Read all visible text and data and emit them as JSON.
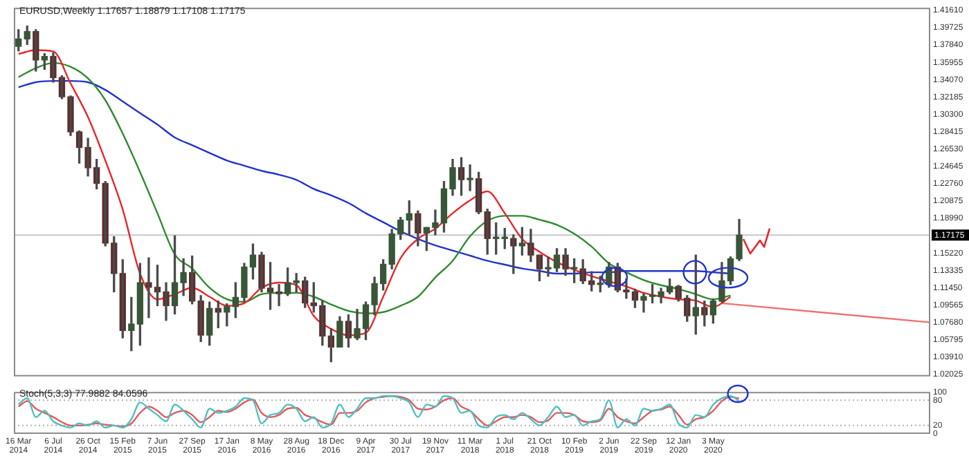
{
  "chart_data": [
    {
      "type": "candlestick",
      "title": "EURUSD,Weekly 1.17657 1.18879 1.17108 1.17175",
      "tick_labels": "y",
      "x": [
        "2014-03-16",
        "2014-04-13",
        "2014-05-11",
        "2014-06-08",
        "2014-07-06",
        "2014-08-03",
        "2014-08-31",
        "2014-09-28",
        "2014-10-26",
        "2014-11-23",
        "2014-12-21",
        "2015-01-18",
        "2015-02-15",
        "2015-03-15",
        "2015-04-12",
        "2015-05-10",
        "2015-06-07",
        "2015-07-05",
        "2015-08-02",
        "2015-08-30",
        "2015-09-27",
        "2015-10-25",
        "2015-11-22",
        "2015-12-20",
        "2016-01-17",
        "2016-02-14",
        "2016-03-13",
        "2016-04-10",
        "2016-05-08",
        "2016-06-05",
        "2016-07-03",
        "2016-07-31",
        "2016-08-28",
        "2016-09-25",
        "2016-10-23",
        "2016-11-20",
        "2016-12-18",
        "2017-01-15",
        "2017-02-12",
        "2017-03-12",
        "2017-04-09",
        "2017-05-07",
        "2017-06-04",
        "2017-07-02",
        "2017-07-30",
        "2017-08-27",
        "2017-09-24",
        "2017-10-22",
        "2017-11-19",
        "2017-12-17",
        "2018-01-14",
        "2018-02-11",
        "2018-03-11",
        "2018-04-08",
        "2018-05-06",
        "2018-06-03",
        "2018-07-01",
        "2018-07-29",
        "2018-08-26",
        "2018-09-23",
        "2018-10-21",
        "2018-11-18",
        "2018-12-16",
        "2019-01-13",
        "2019-02-10",
        "2019-03-10",
        "2019-04-07",
        "2019-05-05",
        "2019-06-02",
        "2019-06-30",
        "2019-07-28",
        "2019-08-25",
        "2019-09-22",
        "2019-10-20",
        "2019-11-17",
        "2019-12-15",
        "2020-01-12",
        "2020-02-09",
        "2020-03-08",
        "2020-04-05",
        "2020-05-03",
        "2020-05-31",
        "2020-06-28",
        "2020-07-26"
      ],
      "ohlc": [
        [
          1.377,
          1.395,
          1.372,
          1.385
        ],
        [
          1.385,
          1.399,
          1.379,
          1.393
        ],
        [
          1.393,
          1.395,
          1.35,
          1.362
        ],
        [
          1.362,
          1.369,
          1.352,
          1.366
        ],
        [
          1.366,
          1.37,
          1.338,
          1.343
        ],
        [
          1.343,
          1.345,
          1.32,
          1.322
        ],
        [
          1.322,
          1.323,
          1.28,
          1.284
        ],
        [
          1.284,
          1.285,
          1.25,
          1.267
        ],
        [
          1.267,
          1.277,
          1.236,
          1.245
        ],
        [
          1.245,
          1.254,
          1.222,
          1.228
        ],
        [
          1.228,
          1.23,
          1.16,
          1.163
        ],
        [
          1.163,
          1.17,
          1.11,
          1.13
        ],
        [
          1.13,
          1.145,
          1.06,
          1.068
        ],
        [
          1.068,
          1.104,
          1.046,
          1.075
        ],
        [
          1.075,
          1.141,
          1.052,
          1.12
        ],
        [
          1.12,
          1.147,
          1.082,
          1.115
        ],
        [
          1.115,
          1.139,
          1.095,
          1.11
        ],
        [
          1.11,
          1.12,
          1.079,
          1.095
        ],
        [
          1.095,
          1.171,
          1.086,
          1.12
        ],
        [
          1.12,
          1.146,
          1.106,
          1.131
        ],
        [
          1.131,
          1.149,
          1.097,
          1.1
        ],
        [
          1.1,
          1.106,
          1.056,
          1.063
        ],
        [
          1.063,
          1.099,
          1.052,
          1.092
        ],
        [
          1.092,
          1.1,
          1.071,
          1.088
        ],
        [
          1.088,
          1.097,
          1.073,
          1.094
        ],
        [
          1.094,
          1.12,
          1.082,
          1.104
        ],
        [
          1.104,
          1.141,
          1.1,
          1.137
        ],
        [
          1.137,
          1.162,
          1.124,
          1.15
        ],
        [
          1.15,
          1.153,
          1.11,
          1.114
        ],
        [
          1.114,
          1.142,
          1.091,
          1.11
        ],
        [
          1.11,
          1.118,
          1.095,
          1.108
        ],
        [
          1.108,
          1.136,
          1.106,
          1.12
        ],
        [
          1.12,
          1.13,
          1.11,
          1.122
        ],
        [
          1.122,
          1.126,
          1.093,
          1.098
        ],
        [
          1.098,
          1.12,
          1.088,
          1.095
        ],
        [
          1.095,
          1.1,
          1.052,
          1.062
        ],
        [
          1.062,
          1.07,
          1.034,
          1.05
        ],
        [
          1.05,
          1.083,
          1.05,
          1.078
        ],
        [
          1.078,
          1.085,
          1.05,
          1.06
        ],
        [
          1.06,
          1.091,
          1.058,
          1.07
        ],
        [
          1.07,
          1.099,
          1.058,
          1.096
        ],
        [
          1.096,
          1.126,
          1.085,
          1.119
        ],
        [
          1.119,
          1.145,
          1.112,
          1.14
        ],
        [
          1.14,
          1.178,
          1.135,
          1.173
        ],
        [
          1.173,
          1.191,
          1.167,
          1.188
        ],
        [
          1.188,
          1.209,
          1.172,
          1.195
        ],
        [
          1.195,
          1.198,
          1.16,
          1.174
        ],
        [
          1.174,
          1.18,
          1.155,
          1.18
        ],
        [
          1.18,
          1.199,
          1.172,
          1.185
        ],
        [
          1.185,
          1.23,
          1.175,
          1.222
        ],
        [
          1.222,
          1.254,
          1.215,
          1.245
        ],
        [
          1.245,
          1.256,
          1.215,
          1.232
        ],
        [
          1.232,
          1.248,
          1.22,
          1.233
        ],
        [
          1.233,
          1.24,
          1.195,
          1.197
        ],
        [
          1.197,
          1.2,
          1.151,
          1.168
        ],
        [
          1.168,
          1.185,
          1.151,
          1.168
        ],
        [
          1.168,
          1.179,
          1.157,
          1.168
        ],
        [
          1.168,
          1.172,
          1.13,
          1.16
        ],
        [
          1.16,
          1.18,
          1.15,
          1.163
        ],
        [
          1.163,
          1.178,
          1.143,
          1.15
        ],
        [
          1.15,
          1.15,
          1.122,
          1.135
        ],
        [
          1.135,
          1.148,
          1.127,
          1.136
        ],
        [
          1.136,
          1.157,
          1.132,
          1.15
        ],
        [
          1.15,
          1.157,
          1.128,
          1.135
        ],
        [
          1.135,
          1.146,
          1.12,
          1.135
        ],
        [
          1.135,
          1.145,
          1.119,
          1.122
        ],
        [
          1.122,
          1.132,
          1.111,
          1.118
        ],
        [
          1.118,
          1.127,
          1.11,
          1.118
        ],
        [
          1.118,
          1.142,
          1.115,
          1.137
        ],
        [
          1.137,
          1.141,
          1.11,
          1.112
        ],
        [
          1.112,
          1.124,
          1.103,
          1.11
        ],
        [
          1.11,
          1.113,
          1.093,
          1.101
        ],
        [
          1.101,
          1.108,
          1.088,
          1.105
        ],
        [
          1.105,
          1.118,
          1.098,
          1.105
        ],
        [
          1.105,
          1.114,
          1.098,
          1.11
        ],
        [
          1.11,
          1.124,
          1.108,
          1.116
        ],
        [
          1.116,
          1.117,
          1.1,
          1.103
        ],
        [
          1.103,
          1.106,
          1.078,
          1.084
        ],
        [
          1.084,
          1.15,
          1.064,
          1.093
        ],
        [
          1.093,
          1.1,
          1.073,
          1.085
        ],
        [
          1.085,
          1.102,
          1.076,
          1.1
        ],
        [
          1.1,
          1.142,
          1.099,
          1.122
        ],
        [
          1.122,
          1.148,
          1.118,
          1.146
        ],
        [
          1.146,
          1.18879,
          1.144,
          1.17175
        ]
      ],
      "series": [
        {
          "type": "line",
          "color": "#e8262b",
          "x": [
            "2014-03-16",
            "2014-05-11",
            "2014-07-06",
            "2014-08-31",
            "2014-10-26",
            "2014-12-21",
            "2015-02-15",
            "2015-04-12",
            "2015-06-07",
            "2015-08-02",
            "2015-09-27",
            "2015-11-22",
            "2016-01-17",
            "2016-03-13",
            "2016-05-08",
            "2016-07-03",
            "2016-08-28",
            "2016-10-23",
            "2016-12-18",
            "2017-02-12",
            "2017-04-09",
            "2017-06-04",
            "2017-07-30",
            "2017-09-24",
            "2017-11-19",
            "2018-01-14",
            "2018-03-11",
            "2018-05-06",
            "2018-07-01",
            "2018-08-26",
            "2018-10-21",
            "2018-12-16",
            "2019-02-10",
            "2019-04-07",
            "2019-06-02",
            "2019-07-28",
            "2019-09-22",
            "2019-11-17",
            "2020-01-12",
            "2020-03-08",
            "2020-05-03",
            "2020-06-28"
          ],
          "values": [
            1.3687,
            1.3729,
            1.3715,
            1.3366,
            1.3002,
            1.2528,
            1.1997,
            1.1299,
            1.1019,
            1.1075,
            1.1145,
            1.1047,
            1.0949,
            1.0977,
            1.1145,
            1.1201,
            1.1173,
            1.0838,
            1.0698,
            1.0628,
            1.0656,
            1.1047,
            1.1466,
            1.1676,
            1.1787,
            1.1955,
            1.2095,
            1.2192,
            1.1955,
            1.1676,
            1.1536,
            1.1424,
            1.134,
            1.1271,
            1.1215,
            1.1159,
            1.1089,
            1.1047,
            1.1019,
            1.1005,
            1.0935,
            1.1047
          ]
        },
        {
          "type": "line",
          "color": "#2e8b2e",
          "x": [
            "2014-03-16",
            "2014-05-11",
            "2014-07-06",
            "2014-08-31",
            "2014-10-26",
            "2014-12-21",
            "2015-02-15",
            "2015-04-12",
            "2015-06-07",
            "2015-08-02",
            "2015-09-27",
            "2015-11-22",
            "2016-01-17",
            "2016-03-13",
            "2016-05-08",
            "2016-07-03",
            "2016-08-28",
            "2016-10-23",
            "2016-12-18",
            "2017-02-12",
            "2017-04-09",
            "2017-06-04",
            "2017-07-30",
            "2017-09-24",
            "2017-11-19",
            "2018-01-14",
            "2018-03-11",
            "2018-05-06",
            "2018-07-01",
            "2018-08-26",
            "2018-10-21",
            "2018-12-16",
            "2019-02-10",
            "2019-04-07",
            "2019-06-02",
            "2019-07-28",
            "2019-09-22",
            "2019-11-17",
            "2020-01-12",
            "2020-03-08",
            "2020-05-03",
            "2020-06-28"
          ],
          "values": [
            1.3435,
            1.3533,
            1.3589,
            1.3547,
            1.3421,
            1.3184,
            1.2821,
            1.2402,
            1.1955,
            1.1508,
            1.1354,
            1.1145,
            1.1019,
            1.0991,
            1.1075,
            1.1089,
            1.1089,
            1.1047,
            1.0963,
            1.0893,
            1.0866,
            1.088,
            1.0949,
            1.1047,
            1.1257,
            1.1438,
            1.1704,
            1.1871,
            1.1927,
            1.1927,
            1.1885,
            1.1829,
            1.1732,
            1.1592,
            1.141,
            1.1313,
            1.1229,
            1.1173,
            1.1131,
            1.1075,
            1.1019,
            1.1061
          ]
        },
        {
          "type": "line",
          "color": "#2233cc",
          "x": [
            "2014-03-16",
            "2014-05-11",
            "2014-07-06",
            "2014-08-31",
            "2014-10-26",
            "2014-12-21",
            "2015-02-15",
            "2015-04-12",
            "2015-06-07",
            "2015-08-02",
            "2015-09-27",
            "2015-11-22",
            "2016-01-17",
            "2016-03-13",
            "2016-05-08",
            "2016-07-03",
            "2016-08-28",
            "2016-10-23",
            "2016-12-18",
            "2017-02-12",
            "2017-04-09",
            "2017-06-04",
            "2017-07-30",
            "2017-09-24",
            "2017-11-19",
            "2018-01-14",
            "2018-03-11",
            "2018-05-06",
            "2018-07-01",
            "2018-08-26",
            "2018-10-21",
            "2018-12-16",
            "2019-02-10",
            "2019-04-07",
            "2019-06-02",
            "2019-07-28",
            "2019-09-22",
            "2019-11-17",
            "2020-01-12",
            "2020-03-08",
            "2020-05-03",
            "2020-06-28"
          ],
          "values": [
            1.3324,
            1.3379,
            1.3393,
            1.3393,
            1.3379,
            1.3296,
            1.317,
            1.3044,
            1.2919,
            1.2779,
            1.2695,
            1.2611,
            1.2528,
            1.2472,
            1.2416,
            1.2374,
            1.2318,
            1.222,
            1.215,
            1.2067,
            1.1955,
            1.1857,
            1.1759,
            1.1676,
            1.1606,
            1.155,
            1.1494,
            1.1438,
            1.1396,
            1.1354,
            1.1327,
            1.1299,
            1.1299,
            1.1313,
            1.1313,
            1.1327,
            1.1327,
            1.1327,
            1.1327,
            1.1327,
            1.1313,
            1.1299
          ]
        },
        {
          "type": "line",
          "color": "#f07070",
          "x": [
            "2020-05-31",
            "2022-04-03"
          ],
          "values": [
            1.0977,
            1.0768
          ]
        }
      ],
      "xlim": [
        "2014-03-01",
        "2022-04-03"
      ],
      "ylim": [
        1.0181,
        1.4189
      ],
      "yticks": [
        {
          "value": 1.4161,
          "label": "1.41610"
        },
        1.39725,
        {
          "value": 1.3784,
          "label": "1.37840"
        },
        1.35955,
        {
          "value": 1.3407,
          "label": "1.34070"
        },
        1.32185,
        {
          "value": 1.303,
          "label": "1.30300"
        },
        1.28415,
        {
          "value": 1.2653,
          "label": "1.26530"
        },
        1.24645,
        {
          "value": 1.2276,
          "label": "1.22760"
        },
        1.20875,
        {
          "value": 1.1899,
          "label": "1.18990"
        },
        {
          "value": 1.1522,
          "label": "1.15220"
        },
        1.13335,
        {
          "value": 1.1145,
          "label": "1.11450"
        },
        1.09565,
        {
          "value": 1.0768,
          "label": "1.07680"
        },
        1.05795,
        {
          "value": 1.0391,
          "label": "1.03910"
        },
        1.02025
      ],
      "ref_lines": [
        {
          "axis": "y",
          "value": 1.17175,
          "label": "1.17175",
          "color": "#c4c8d0"
        }
      ]
    },
    {
      "type": "line",
      "title": "Stoch(5,3,3) 77.9882 84.0596",
      "x": [
        "2014-03-16",
        "2014-04-13",
        "2014-05-11",
        "2014-06-08",
        "2014-07-06",
        "2014-08-03",
        "2014-08-31",
        "2014-09-28",
        "2014-10-26",
        "2014-11-23",
        "2014-12-21",
        "2015-01-18",
        "2015-02-15",
        "2015-03-15",
        "2015-04-12",
        "2015-05-10",
        "2015-06-07",
        "2015-07-05",
        "2015-08-02",
        "2015-08-30",
        "2015-09-27",
        "2015-10-25",
        "2015-11-22",
        "2015-12-20",
        "2016-01-17",
        "2016-02-14",
        "2016-03-13",
        "2016-04-10",
        "2016-05-08",
        "2016-06-05",
        "2016-07-03",
        "2016-07-31",
        "2016-08-28",
        "2016-09-25",
        "2016-10-23",
        "2016-11-20",
        "2016-12-18",
        "2017-01-15",
        "2017-02-12",
        "2017-03-12",
        "2017-04-09",
        "2017-05-07",
        "2017-06-04",
        "2017-07-02",
        "2017-07-30",
        "2017-08-27",
        "2017-09-24",
        "2017-10-22",
        "2017-11-19",
        "2017-12-17",
        "2018-01-14",
        "2018-02-11",
        "2018-03-11",
        "2018-04-08",
        "2018-05-06",
        "2018-06-03",
        "2018-07-01",
        "2018-07-29",
        "2018-08-26",
        "2018-09-23",
        "2018-10-21",
        "2018-11-18",
        "2018-12-16",
        "2019-01-13",
        "2019-02-10",
        "2019-03-10",
        "2019-04-07",
        "2019-05-05",
        "2019-06-02",
        "2019-06-30",
        "2019-07-28",
        "2019-08-25",
        "2019-09-22",
        "2019-10-20",
        "2019-11-17",
        "2019-12-15",
        "2020-01-12",
        "2020-02-09",
        "2020-03-08",
        "2020-04-05",
        "2020-05-03",
        "2020-05-31",
        "2020-06-28",
        "2020-07-26"
      ],
      "series": [
        {
          "color": "#4fbfc4",
          "values": [
            70,
            85,
            40,
            55,
            30,
            20,
            15,
            25,
            20,
            30,
            15,
            20,
            15,
            35,
            75,
            60,
            45,
            30,
            70,
            55,
            35,
            15,
            60,
            50,
            55,
            65,
            85,
            80,
            25,
            45,
            50,
            70,
            60,
            30,
            40,
            15,
            25,
            70,
            40,
            60,
            85,
            85,
            90,
            90,
            85,
            75,
            40,
            70,
            65,
            90,
            85,
            50,
            55,
            20,
            15,
            40,
            45,
            35,
            50,
            35,
            20,
            40,
            65,
            40,
            45,
            20,
            30,
            35,
            80,
            15,
            35,
            20,
            60,
            55,
            60,
            70,
            25,
            15,
            45,
            40,
            70,
            85,
            90,
            78
          ]
        },
        {
          "color": "#e35a5a",
          "values": [
            65,
            78,
            60,
            50,
            40,
            28,
            20,
            20,
            22,
            25,
            22,
            20,
            18,
            25,
            50,
            65,
            55,
            40,
            50,
            55,
            45,
            28,
            40,
            55,
            52,
            60,
            75,
            82,
            50,
            40,
            45,
            60,
            62,
            45,
            38,
            28,
            22,
            50,
            50,
            55,
            75,
            85,
            88,
            90,
            88,
            80,
            60,
            58,
            65,
            80,
            85,
            65,
            55,
            35,
            20,
            30,
            40,
            40,
            45,
            40,
            28,
            32,
            50,
            50,
            45,
            30,
            28,
            32,
            60,
            40,
            30,
            25,
            40,
            55,
            58,
            65,
            45,
            22,
            35,
            40,
            55,
            78,
            88,
            84
          ]
        }
      ],
      "xlim": [
        "2014-03-01",
        "2022-04-03"
      ],
      "ylim": [
        0,
        100
      ],
      "yticks": [
        0,
        20,
        80,
        100
      ],
      "xticks": [
        {
          "value": "2014-03-16",
          "label": "16 Mar 2014"
        },
        {
          "value": "2014-07-06",
          "label": "6 Jul 2014"
        },
        {
          "value": "2014-10-26",
          "label": "26 Oct 2014"
        },
        {
          "value": "2015-02-15",
          "label": "15 Feb 2015"
        },
        {
          "value": "2015-06-07",
          "label": "7 Jun 2015"
        },
        {
          "value": "2015-09-27",
          "label": "27 Sep 2015"
        },
        {
          "value": "2016-01-17",
          "label": "17 Jan 2016"
        },
        {
          "value": "2016-05-08",
          "label": "8 May 2016"
        },
        {
          "value": "2016-08-28",
          "label": "28 Aug 2016"
        },
        {
          "value": "2016-12-18",
          "label": "18 Dec 2016"
        },
        {
          "value": "2017-04-09",
          "label": "9 Apr 2017"
        },
        {
          "value": "2017-07-30",
          "label": "30 Jul 2017"
        },
        {
          "value": "2017-11-19",
          "label": "19 Nov 2017"
        },
        {
          "value": "2018-03-11",
          "label": "11 Mar 2018"
        },
        {
          "value": "2018-07-01",
          "label": "1 Jul 2018"
        },
        {
          "value": "2018-10-21",
          "label": "21 Oct 2018"
        },
        {
          "value": "2019-02-10",
          "label": "10 Feb 2019"
        },
        {
          "value": "2019-06-02",
          "label": "2 Jun 2019"
        },
        {
          "value": "2019-09-22",
          "label": "22 Sep 2019"
        },
        {
          "value": "2020-01-12",
          "label": "12 Jan 2020"
        },
        {
          "value": "2020-05-03",
          "label": "3 May 2020"
        }
      ],
      "ref_lines": [
        {
          "axis": "y",
          "value": 80,
          "color": "#b0b0b0",
          "line_style": "dotted"
        },
        {
          "axis": "y",
          "value": 20,
          "color": "#b0b0b0",
          "line_style": "dotted"
        }
      ]
    }
  ]
}
